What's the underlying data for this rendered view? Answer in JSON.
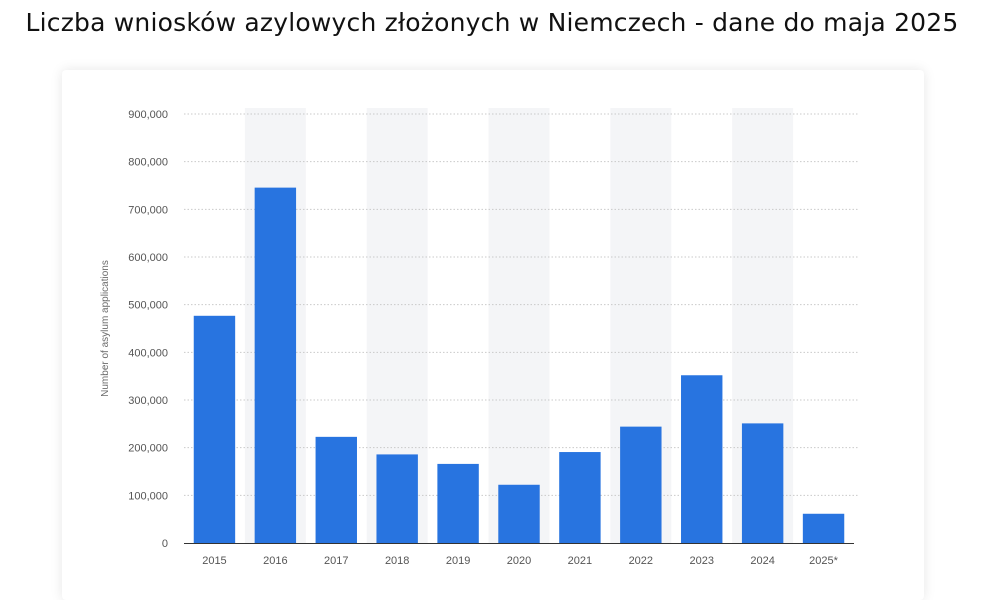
{
  "title": "Liczba wniosków azylowych złożonych w Niemczech - dane do maja 2025",
  "colors": {
    "bar": "#2874e0",
    "grid": "#c9c9c9",
    "band": "#f4f5f7",
    "axis": "#333333"
  },
  "chart_data": {
    "type": "bar",
    "categories": [
      "2015",
      "2016",
      "2017",
      "2018",
      "2019",
      "2020",
      "2021",
      "2022",
      "2023",
      "2024",
      "2025*"
    ],
    "values": [
      476649,
      745545,
      222683,
      185853,
      165938,
      122170,
      190816,
      244132,
      351915,
      250945,
      61336
    ],
    "ylabel": "Number of asylum applications",
    "xlabel": "",
    "ylim": [
      0,
      900000
    ],
    "yticks": [
      0,
      100000,
      200000,
      300000,
      400000,
      500000,
      600000,
      700000,
      800000,
      900000
    ],
    "ytick_labels": [
      "0",
      "100,000",
      "200,000",
      "300,000",
      "400,000",
      "500,000",
      "600,000",
      "700,000",
      "800,000",
      "900,000"
    ],
    "grid": true,
    "alternating_bands": true
  }
}
